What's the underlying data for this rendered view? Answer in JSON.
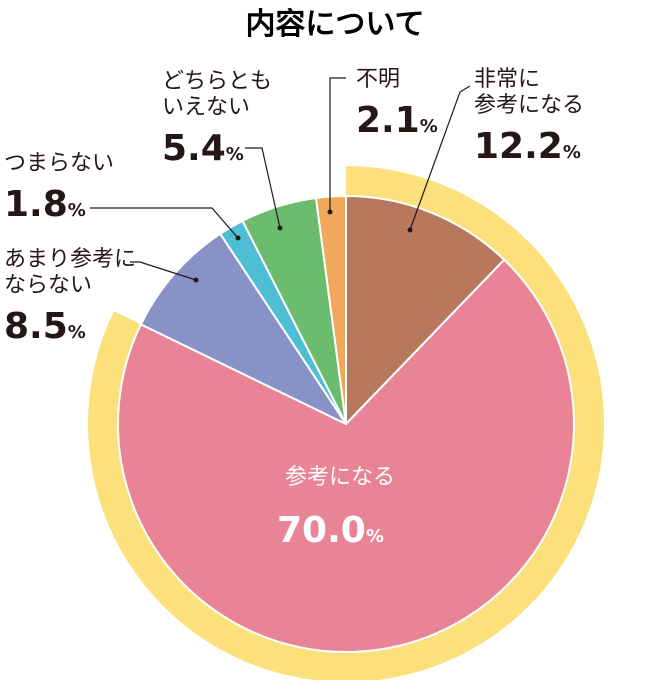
{
  "chart_data": {
    "type": "pie",
    "title": "内容について",
    "unit": "%",
    "slices": [
      {
        "name": "非常に参考になる",
        "lines": [
          "非常に",
          "参考になる"
        ],
        "value": 12.2,
        "color": "#B8785E"
      },
      {
        "name": "参考になる",
        "lines": [
          "参考になる"
        ],
        "value": 70.0,
        "color": "#E98497"
      },
      {
        "name": "あまり参考にならない",
        "lines": [
          "あまり参考に",
          "ならない"
        ],
        "value": 8.5,
        "color": "#8892C7"
      },
      {
        "name": "つまらない",
        "lines": [
          "つまらない"
        ],
        "value": 1.8,
        "color": "#4DBED3"
      },
      {
        "name": "どちらともいえない",
        "lines": [
          "どちらとも",
          "いえない"
        ],
        "value": 5.4,
        "color": "#6BBC6E"
      },
      {
        "name": "不明",
        "lines": [
          "不明"
        ],
        "value": 2.1,
        "color": "#F0A95A"
      }
    ],
    "highlight_color": "#FCE07C"
  }
}
